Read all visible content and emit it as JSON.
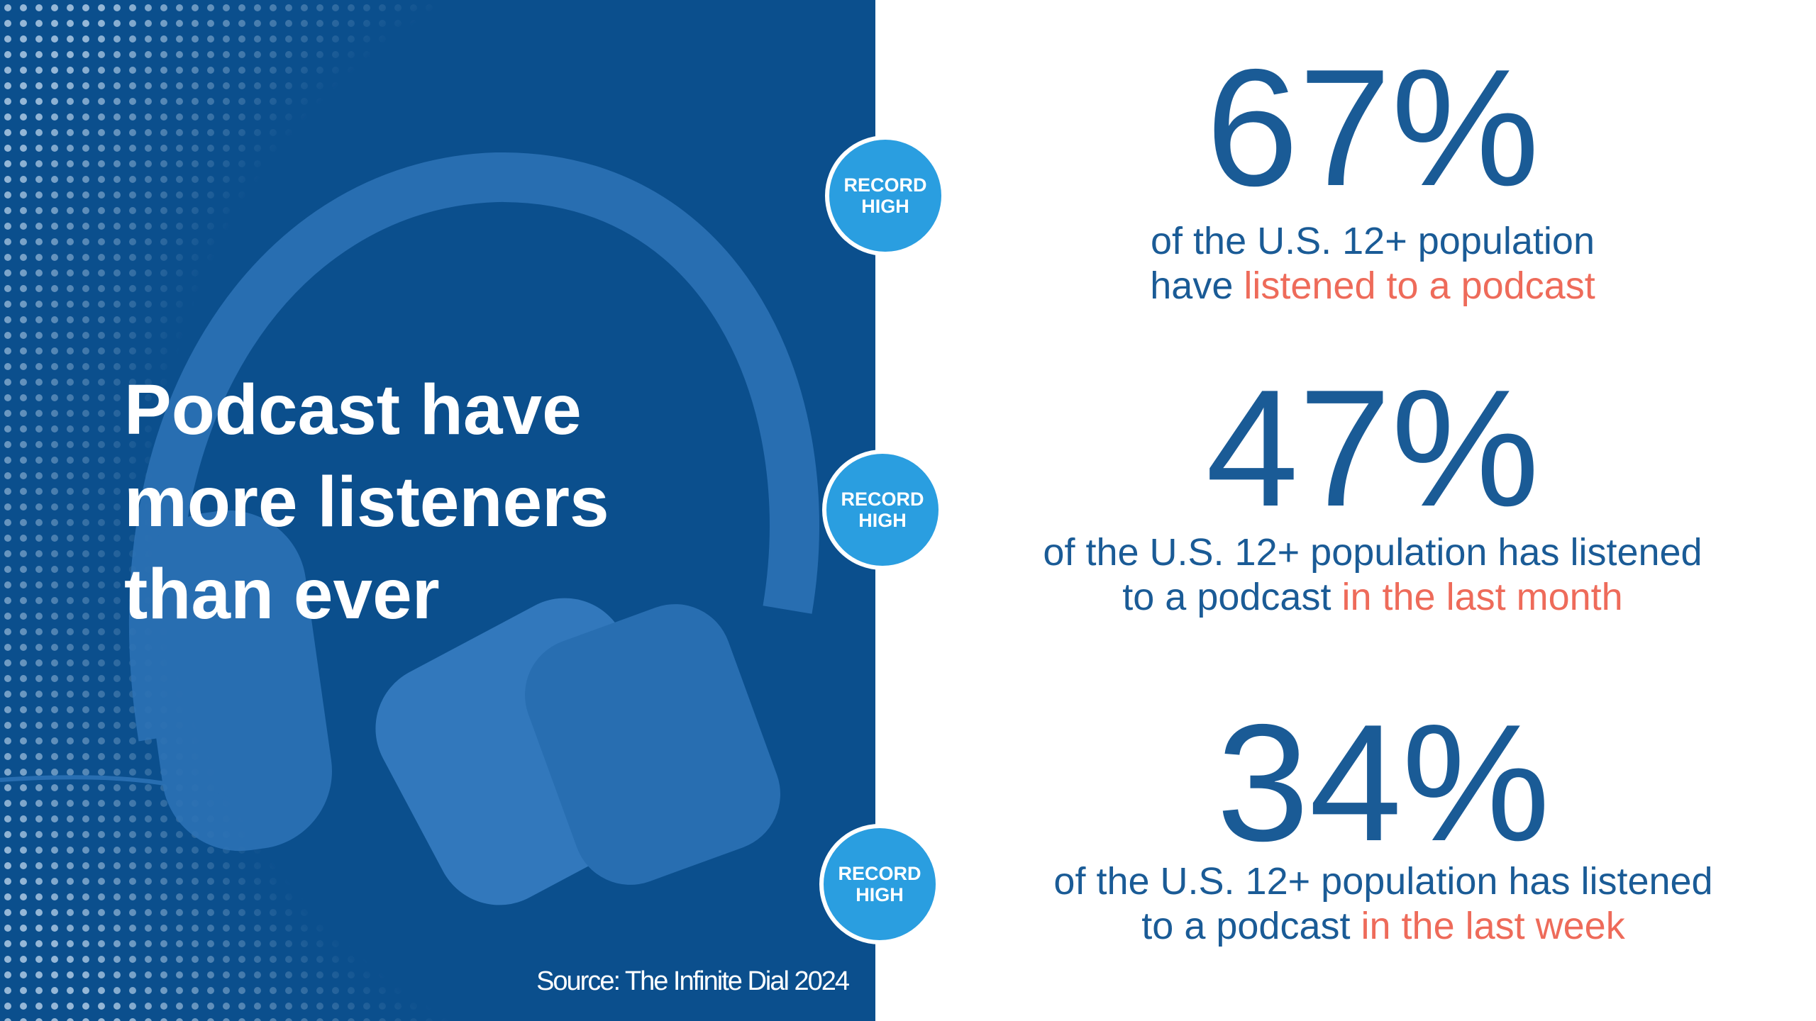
{
  "slide": {
    "title": [
      "Podcast have",
      "more listeners",
      "than ever"
    ],
    "source": "Source: The Infinite Dial 2024",
    "stats": [
      {
        "badge": [
          "RECORD",
          "HIGH"
        ],
        "value": "67%",
        "line1": "of the U.S. 12+ population",
        "line2": "have",
        "highlight": "listened to a podcast"
      },
      {
        "badge": [
          "RECORD",
          "HIGH"
        ],
        "value": "47%",
        "line1": "of the U.S. 12+ population has listened",
        "line2": "to a podcast",
        "highlight": "in the last month"
      },
      {
        "badge": [
          "RECORD",
          "HIGH"
        ],
        "value": "34%",
        "line1": "of the U.S. 12+ population has listened",
        "line2": "to a podcast",
        "highlight": "in the last week"
      }
    ]
  }
}
